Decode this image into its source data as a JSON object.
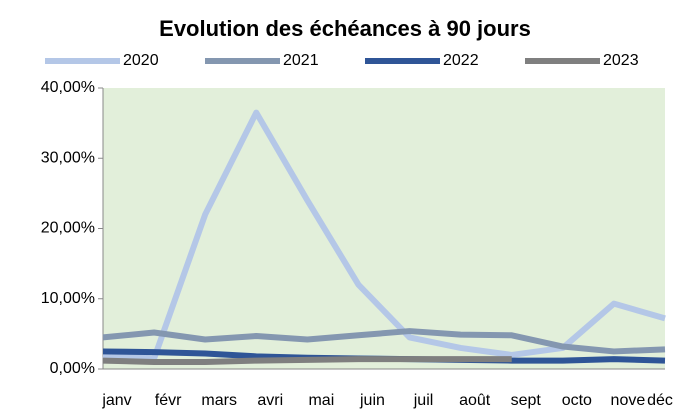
{
  "chart_data": {
    "type": "line",
    "title": "Evolution des échéances à 90 jours",
    "categories": [
      "janv",
      "févr",
      "mars",
      "avri",
      "mai",
      "juin",
      "juil",
      "août",
      "sept",
      "octo",
      "nove",
      "déc"
    ],
    "series": [
      {
        "name": "2020",
        "color": "#b4c7e7",
        "values": [
          2,
          1.5,
          22,
          36.5,
          24,
          12,
          4.5,
          3,
          2,
          3,
          9.3,
          7.2
        ]
      },
      {
        "name": "2021",
        "color": "#8497b0",
        "values": [
          4.5,
          5.2,
          4.2,
          4.7,
          4.2,
          4.8,
          5.4,
          4.9,
          4.8,
          3.2,
          2.5,
          2.8
        ]
      },
      {
        "name": "2022",
        "color": "#2f5597",
        "values": [
          2.5,
          2.4,
          2.2,
          1.8,
          1.6,
          1.5,
          1.4,
          1.3,
          1.2,
          1.2,
          1.4,
          1.2
        ]
      },
      {
        "name": "2023",
        "color": "#7f7f7f",
        "values": [
          1.2,
          1.0,
          1.0,
          1.2,
          1.3,
          1.4,
          1.4,
          1.4,
          1.4,
          null,
          null,
          null
        ]
      }
    ],
    "ylim": [
      0,
      40
    ],
    "yticks": [
      {
        "value": 0,
        "label": "0,00%"
      },
      {
        "value": 10,
        "label": "10,00%"
      },
      {
        "value": 20,
        "label": "20,00%"
      },
      {
        "value": 30,
        "label": "30,00%"
      },
      {
        "value": 40,
        "label": "40,00%"
      }
    ],
    "grid": false,
    "legend": "top",
    "background": "#e2efda"
  }
}
